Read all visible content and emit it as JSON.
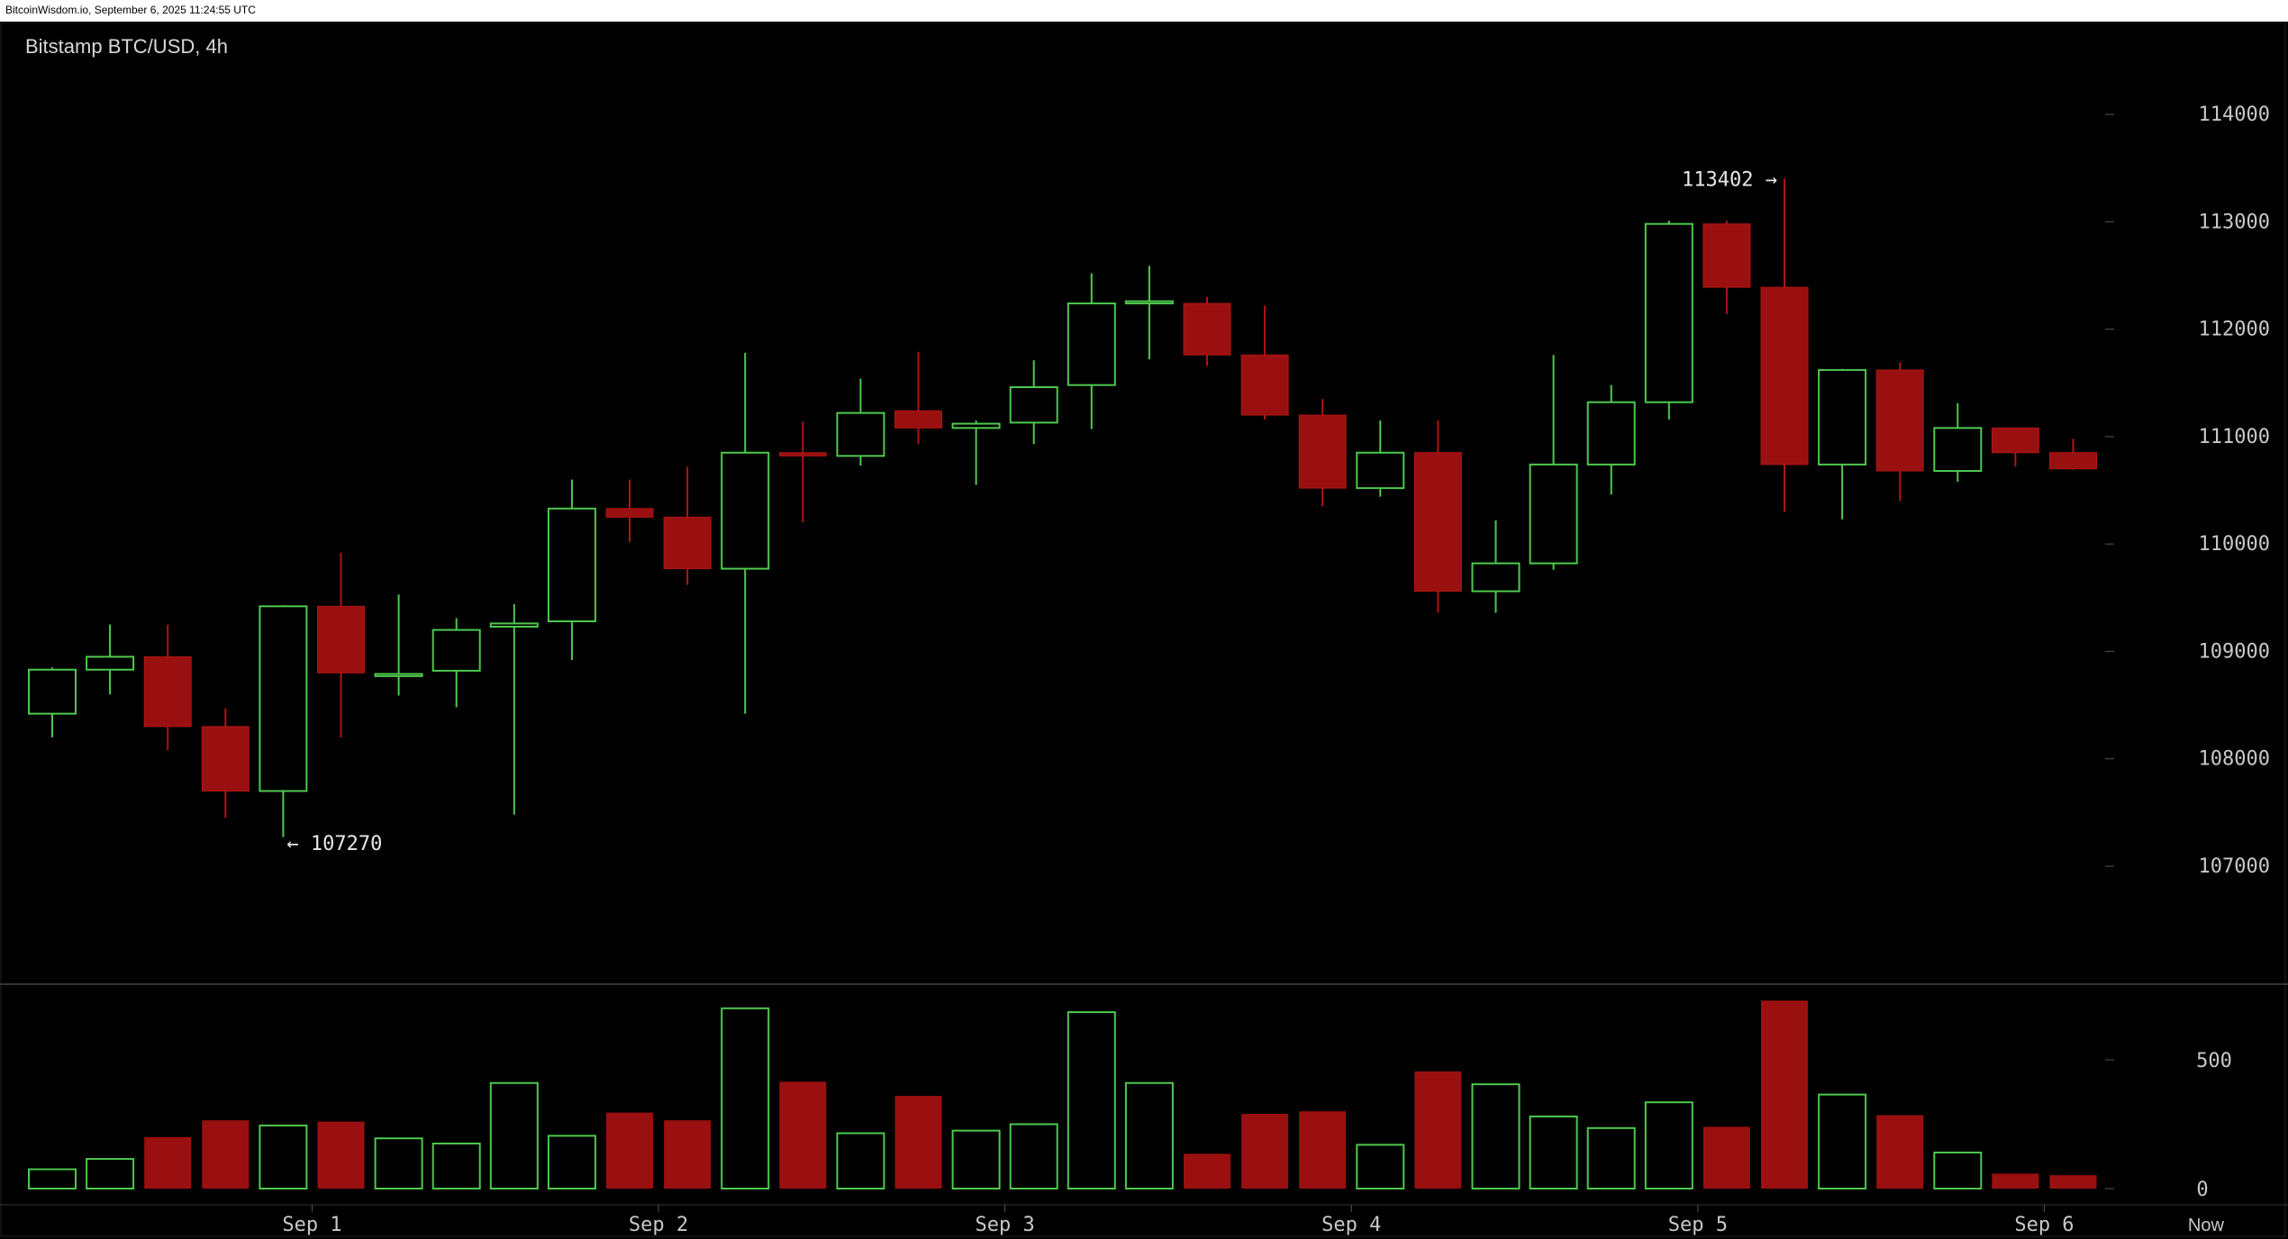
{
  "header": {
    "source": "BitcoinWisdom.io, September 6, 2025 11:24:55 UTC"
  },
  "chart_data": {
    "type": "candlestick",
    "title": "Bitstamp BTC/USD, 4h",
    "exchange": "Bitstamp",
    "pair": "BTC/USD",
    "interval": "4h",
    "colors": {
      "up": "#4ec94e",
      "down": "#9a1010",
      "background": "#000000",
      "text": "#c8c8c8"
    },
    "price_axis": {
      "ticks": [
        107000,
        108000,
        109000,
        110000,
        111000,
        112000,
        113000,
        114000
      ],
      "range": [
        106000,
        114700
      ]
    },
    "volume_axis": {
      "ticks": [
        0,
        500
      ],
      "range": [
        0,
        800
      ]
    },
    "x_tick_labels": [
      "Sep 1",
      "Sep 2",
      "Sep 3",
      "Sep 4",
      "Sep 5",
      "Sep 6",
      "Now"
    ],
    "annotations": {
      "low_label": "← 107270",
      "high_label": "113402 →"
    },
    "candles": [
      {
        "o": 108420,
        "h": 108850,
        "l": 108200,
        "c": 108830,
        "v": 75
      },
      {
        "o": 108830,
        "h": 109250,
        "l": 108600,
        "c": 108950,
        "v": 115
      },
      {
        "o": 108950,
        "h": 109250,
        "l": 108080,
        "c": 108300,
        "v": 200
      },
      {
        "o": 108300,
        "h": 108470,
        "l": 107450,
        "c": 107700,
        "v": 265
      },
      {
        "o": 107700,
        "h": 109430,
        "l": 107270,
        "c": 109420,
        "v": 245
      },
      {
        "o": 109420,
        "h": 109920,
        "l": 108200,
        "c": 108800,
        "v": 260
      },
      {
        "o": 108770,
        "h": 109530,
        "l": 108590,
        "c": 108790,
        "v": 195
      },
      {
        "o": 108820,
        "h": 109310,
        "l": 108480,
        "c": 109200,
        "v": 175
      },
      {
        "o": 109230,
        "h": 109440,
        "l": 107480,
        "c": 109260,
        "v": 410
      },
      {
        "o": 109280,
        "h": 110600,
        "l": 108920,
        "c": 110330,
        "v": 205
      },
      {
        "o": 110330,
        "h": 110600,
        "l": 110020,
        "c": 110250,
        "v": 295
      },
      {
        "o": 110250,
        "h": 110720,
        "l": 109620,
        "c": 109770,
        "v": 265
      },
      {
        "o": 109770,
        "h": 111780,
        "l": 108420,
        "c": 110850,
        "v": 700
      },
      {
        "o": 110850,
        "h": 111140,
        "l": 110200,
        "c": 110820,
        "v": 415
      },
      {
        "o": 110820,
        "h": 111540,
        "l": 110730,
        "c": 111220,
        "v": 215
      },
      {
        "o": 111240,
        "h": 111790,
        "l": 110930,
        "c": 111080,
        "v": 360
      },
      {
        "o": 111080,
        "h": 111150,
        "l": 110550,
        "c": 111120,
        "v": 225
      },
      {
        "o": 111130,
        "h": 111710,
        "l": 110930,
        "c": 111460,
        "v": 250
      },
      {
        "o": 111480,
        "h": 112520,
        "l": 111070,
        "c": 112240,
        "v": 685
      },
      {
        "o": 112240,
        "h": 112590,
        "l": 111720,
        "c": 112260,
        "v": 410
      },
      {
        "o": 112240,
        "h": 112300,
        "l": 111660,
        "c": 111760,
        "v": 135
      },
      {
        "o": 111760,
        "h": 112220,
        "l": 111160,
        "c": 111200,
        "v": 290
      },
      {
        "o": 111200,
        "h": 111350,
        "l": 110350,
        "c": 110520,
        "v": 300
      },
      {
        "o": 110520,
        "h": 111150,
        "l": 110440,
        "c": 110850,
        "v": 170
      },
      {
        "o": 110850,
        "h": 111150,
        "l": 109360,
        "c": 109560,
        "v": 455
      },
      {
        "o": 109560,
        "h": 110220,
        "l": 109360,
        "c": 109820,
        "v": 405
      },
      {
        "o": 109820,
        "h": 111760,
        "l": 109760,
        "c": 110740,
        "v": 280
      },
      {
        "o": 110740,
        "h": 111480,
        "l": 110460,
        "c": 111320,
        "v": 235
      },
      {
        "o": 111320,
        "h": 113010,
        "l": 111160,
        "c": 112980,
        "v": 335
      },
      {
        "o": 112980,
        "h": 113010,
        "l": 112140,
        "c": 112390,
        "v": 240
      },
      {
        "o": 112390,
        "h": 113402,
        "l": 110300,
        "c": 110740,
        "v": 730
      },
      {
        "o": 110740,
        "h": 111630,
        "l": 110230,
        "c": 111620,
        "v": 365
      },
      {
        "o": 111620,
        "h": 111690,
        "l": 110400,
        "c": 110680,
        "v": 285
      },
      {
        "o": 110680,
        "h": 111310,
        "l": 110580,
        "c": 111080,
        "v": 140
      },
      {
        "o": 111080,
        "h": 111080,
        "l": 110720,
        "c": 110850,
        "v": 58
      },
      {
        "o": 110850,
        "h": 110980,
        "l": 110690,
        "c": 110700,
        "v": 52
      }
    ]
  }
}
